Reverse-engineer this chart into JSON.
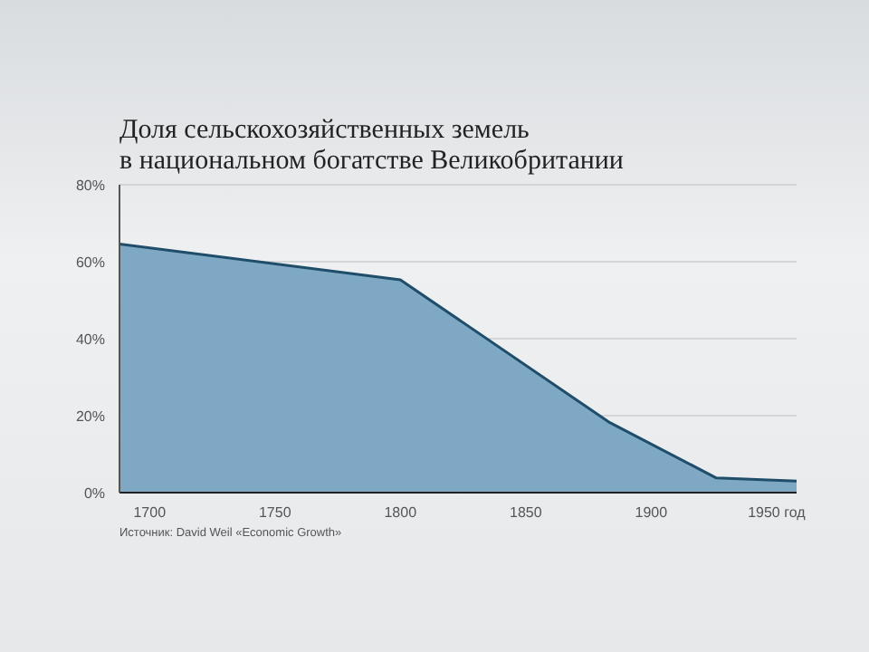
{
  "chart_data": {
    "type": "area",
    "title": "Доля сельскохозяйственных земель\nв национальном богатстве Великобритании",
    "x": [
      1688,
      1800,
      1883,
      1926,
      1958
    ],
    "series": [
      {
        "color": "#7fa8c4",
        "values": [
          64.6,
          55.3,
          18.4,
          3.8,
          3
        ]
      }
    ],
    "xlim": [
      1688,
      1958
    ],
    "xticks": [
      1700,
      1750,
      1800,
      1850,
      1900,
      {
        "value": 1950,
        "label": "1950 год"
      }
    ],
    "ylim": [
      0,
      80
    ],
    "yticks": [
      {
        "value": 0,
        "label": "0%"
      },
      {
        "value": 20,
        "label": "20%"
      },
      {
        "value": 40,
        "label": "40%"
      },
      {
        "value": 60,
        "label": "60%"
      },
      {
        "value": 80,
        "label": "80%"
      }
    ],
    "grid": "y",
    "annotations": [
      "Источник: David Weil «Economic Growth»"
    ]
  }
}
